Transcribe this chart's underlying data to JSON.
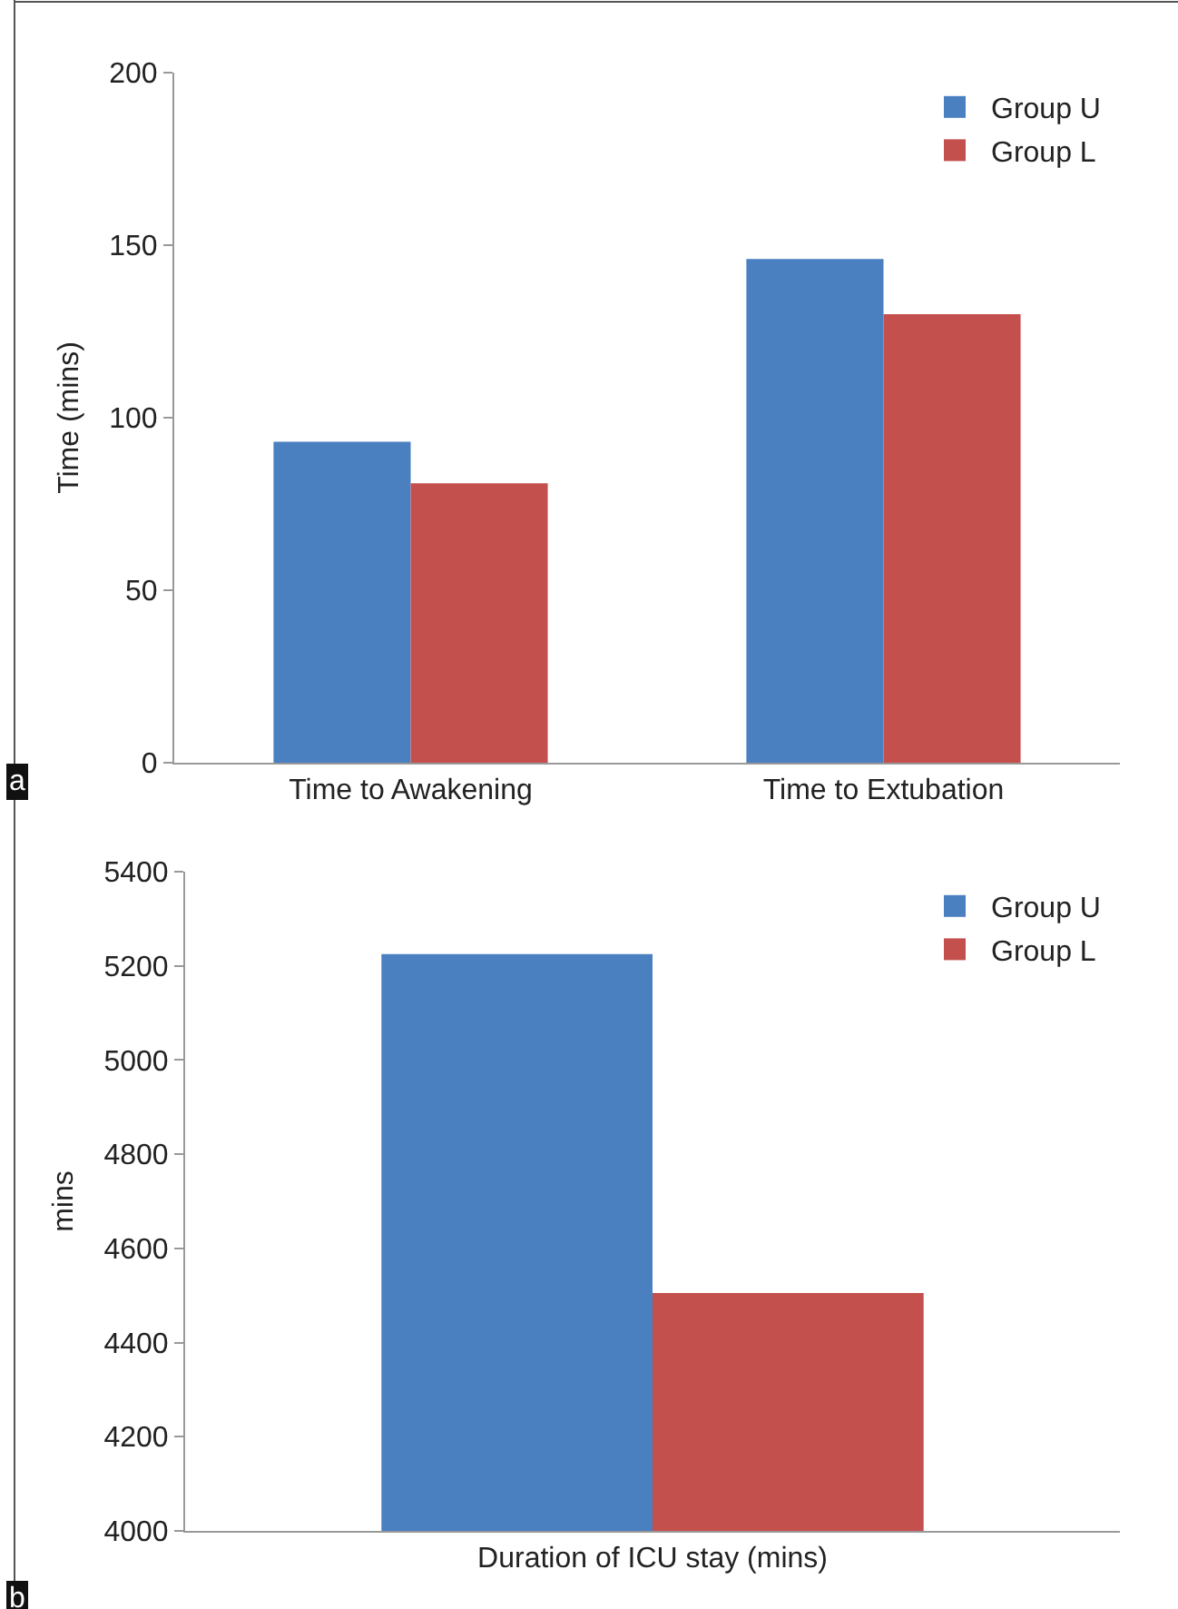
{
  "chart_data": [
    {
      "type": "bar",
      "ylabel": "Time (mins)",
      "categories": [
        "Time to Awakening",
        "Time to Extubation"
      ],
      "series": [
        {
          "name": "Group U",
          "color": "#4a7fc0",
          "values": [
            93,
            146
          ]
        },
        {
          "name": "Group L",
          "color": "#c4504e",
          "values": [
            81,
            130
          ]
        }
      ],
      "ylim": [
        0,
        200
      ],
      "yticks": [
        0,
        50,
        100,
        150,
        200
      ],
      "legend": "top right",
      "annotations": [
        "a"
      ]
    },
    {
      "type": "bar",
      "ylabel": "mins",
      "categories": [
        "Duration of ICU stay (mins)"
      ],
      "series": [
        {
          "name": "Group U",
          "color": "#4a7fc0",
          "values": [
            5225
          ]
        },
        {
          "name": "Group L",
          "color": "#c4504e",
          "values": [
            4505
          ]
        }
      ],
      "ylim": [
        4000,
        5400
      ],
      "yticks": [
        4000,
        4200,
        4400,
        4600,
        4800,
        5000,
        5200,
        5400
      ],
      "legend": "top right",
      "annotations": [
        "b"
      ]
    }
  ]
}
